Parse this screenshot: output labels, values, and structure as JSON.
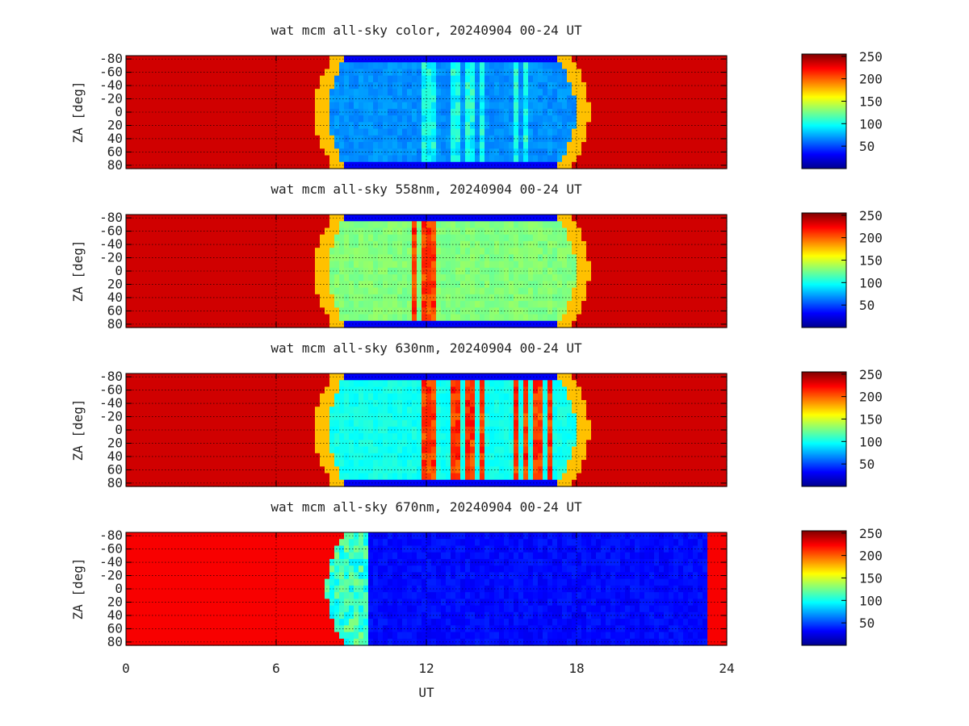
{
  "figure": {
    "xlabel": "UT"
  },
  "chart_data": [
    {
      "type": "heatmap",
      "title": "wat mcm all-sky color, 20240904 00-24 UT",
      "xlabel": "",
      "ylabel": "ZA [deg]",
      "xlim": [
        0,
        24
      ],
      "ylim": [
        -85,
        85
      ],
      "xticks": [
        0,
        6,
        12,
        18,
        24
      ],
      "yticks": [
        -80,
        -60,
        -40,
        -20,
        0,
        20,
        40,
        60,
        80
      ],
      "ytick_labels": [
        "-80",
        "-60",
        "-40",
        "-20",
        "0",
        "20",
        "40",
        "60",
        "80"
      ],
      "clim": [
        0,
        255
      ],
      "colorbar_ticks": [
        50,
        100,
        150,
        200,
        250
      ],
      "colormap": "jet",
      "grid": true,
      "profile": {
        "edge_left_ut": 7.8,
        "edge_right_ut": 18.2,
        "edge_curvature_ut": 0.8,
        "saturated_value": 235,
        "dark_value": 68,
        "streak_start_ut": 11.6,
        "streak_end_ut": 16.2,
        "streak_value": 115
      }
    },
    {
      "type": "heatmap",
      "title": "wat mcm all-sky 558nm, 20240904 00-24 UT",
      "xlabel": "",
      "ylabel": "ZA [deg]",
      "xlim": [
        0,
        24
      ],
      "ylim": [
        -85,
        85
      ],
      "xticks": [
        0,
        6,
        12,
        18,
        24
      ],
      "yticks": [
        -80,
        -60,
        -40,
        -20,
        0,
        20,
        40,
        60,
        80
      ],
      "ytick_labels": [
        "-80",
        "-60",
        "-40",
        "-20",
        "0",
        "20",
        "40",
        "60",
        "80"
      ],
      "clim": [
        0,
        255
      ],
      "colorbar_ticks": [
        50,
        100,
        150,
        200,
        250
      ],
      "colormap": "jet",
      "grid": true,
      "profile": {
        "edge_left_ut": 7.8,
        "edge_right_ut": 18.2,
        "edge_curvature_ut": 0.8,
        "saturated_value": 235,
        "dark_value": 128,
        "streak_start_ut": 11.3,
        "streak_end_ut": 13.0,
        "streak_value": 225
      }
    },
    {
      "type": "heatmap",
      "title": "wat mcm all-sky 630nm, 20240904 00-24 UT",
      "xlabel": "",
      "ylabel": "ZA [deg]",
      "xlim": [
        0,
        24
      ],
      "ylim": [
        -85,
        85
      ],
      "xticks": [
        0,
        6,
        12,
        18,
        24
      ],
      "yticks": [
        -80,
        -60,
        -40,
        -20,
        0,
        20,
        40,
        60,
        80
      ],
      "ytick_labels": [
        "-80",
        "-60",
        "-40",
        "-20",
        "0",
        "20",
        "40",
        "60",
        "80"
      ],
      "clim": [
        0,
        255
      ],
      "colorbar_ticks": [
        50,
        100,
        150,
        200,
        250
      ],
      "colormap": "jet",
      "grid": true,
      "profile": {
        "edge_left_ut": 7.8,
        "edge_right_ut": 18.2,
        "edge_curvature_ut": 0.8,
        "saturated_value": 235,
        "dark_value": 100,
        "streak_start_ut": 11.6,
        "streak_end_ut": 17.5,
        "streak_value": 225
      }
    },
    {
      "type": "heatmap",
      "title": "wat mcm all-sky 670nm, 20240904 00-24 UT",
      "xlabel": "UT",
      "ylabel": "ZA [deg]",
      "xlim": [
        0,
        24
      ],
      "ylim": [
        -85,
        85
      ],
      "xticks": [
        0,
        6,
        12,
        18,
        24
      ],
      "yticks": [
        -80,
        -60,
        -40,
        -20,
        0,
        20,
        40,
        60,
        80
      ],
      "ytick_labels": [
        "-80",
        "-60",
        "-40",
        "-20",
        "0",
        "20",
        "40",
        "60",
        "80"
      ],
      "clim": [
        0,
        255
      ],
      "colorbar_ticks": [
        50,
        100,
        150,
        200,
        250
      ],
      "colormap": "jet",
      "grid": true,
      "profile": {
        "edge_left_ut": 8.0,
        "dark_start_ut": 9.6,
        "edge_right_ut": 23.3,
        "saturated_value": 225,
        "dark_value": 28
      }
    }
  ]
}
